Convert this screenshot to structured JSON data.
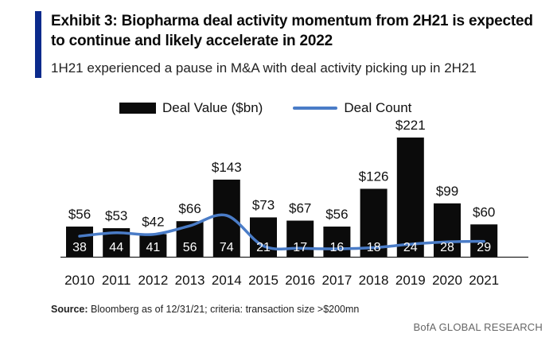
{
  "header": {
    "title": "Exhibit 3: Biopharma deal activity momentum from 2H21 is expected to continue and likely accelerate in 2022",
    "subtitle": "1H21 experienced a pause in M&A with deal activity picking up in 2H21"
  },
  "legend": {
    "bar_label": "Deal  Value ($bn)",
    "line_label": "Deal Count"
  },
  "footer": {
    "source_label": "Source:",
    "source_text": " Bloomberg as of 12/31/21;  criteria: transaction size >$200mn",
    "brand": "BofA GLOBAL RESEARCH"
  },
  "colors": {
    "bar": "#0b0b0b",
    "line": "#4a7cc7",
    "accent": "#0b2a8c"
  },
  "chart_data": {
    "type": "bar",
    "categories": [
      "2010",
      "2011",
      "2012",
      "2013",
      "2014",
      "2015",
      "2016",
      "2017",
      "2018",
      "2019",
      "2020",
      "2021"
    ],
    "series": [
      {
        "name": "Deal  Value ($bn)",
        "type": "bar",
        "values": [
          56,
          53,
          42,
          66,
          143,
          73,
          67,
          56,
          126,
          221,
          99,
          60
        ],
        "labels": [
          "$56",
          "$53",
          "$42",
          "$66",
          "$143",
          "$73",
          "$67",
          "$56",
          "$126",
          "$221",
          "$99",
          "$60"
        ]
      },
      {
        "name": "Deal Count",
        "type": "line",
        "values": [
          38,
          44,
          41,
          56,
          74,
          21,
          17,
          16,
          18,
          24,
          28,
          29
        ]
      }
    ],
    "grid": false,
    "legend_position": "top"
  }
}
